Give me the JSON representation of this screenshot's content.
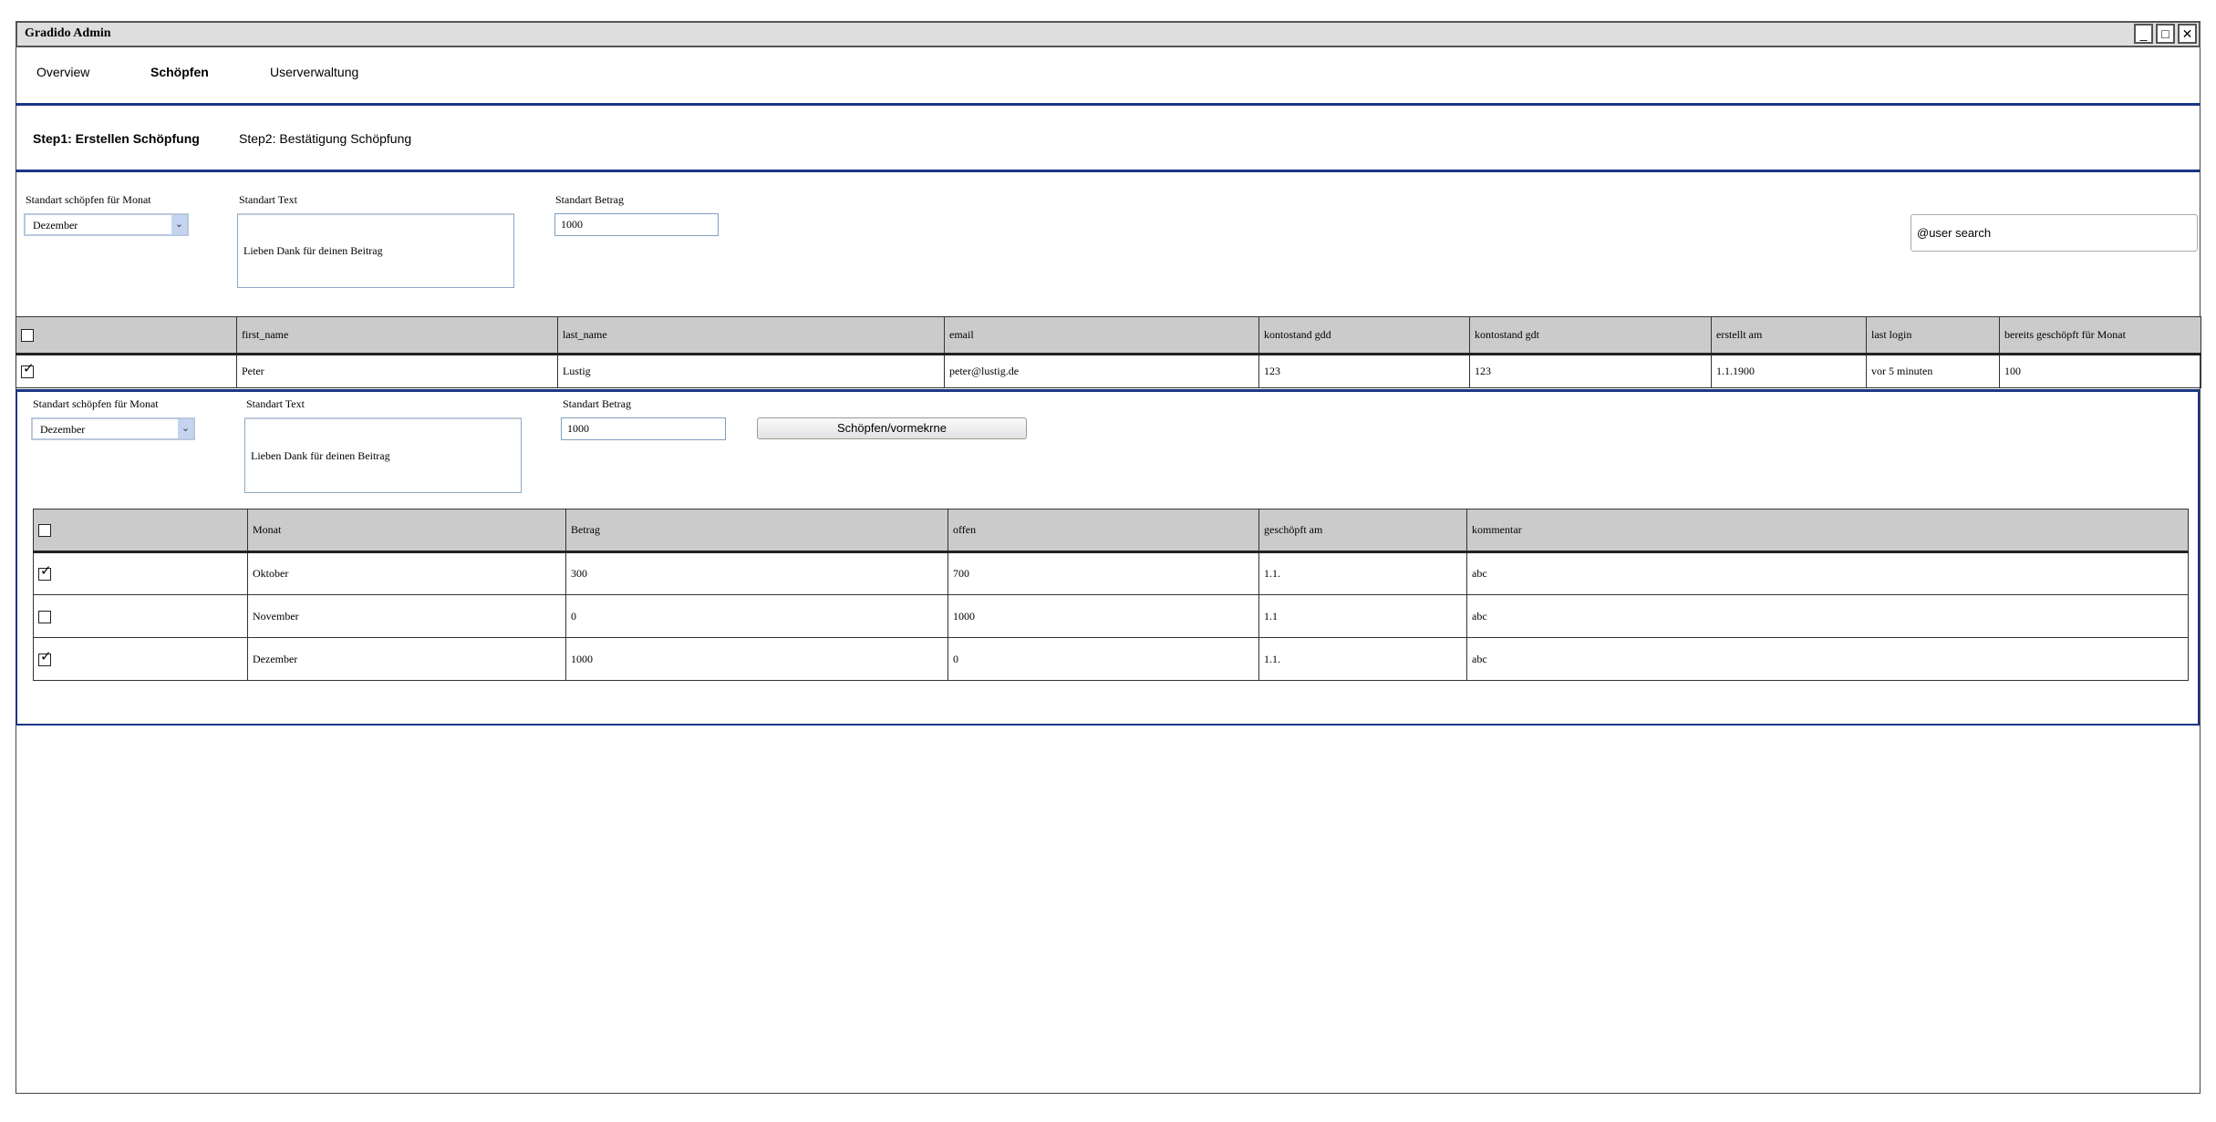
{
  "window": {
    "title": "Gradido Admin",
    "controls": [
      "minimize",
      "maximize",
      "close"
    ]
  },
  "nav": {
    "items": [
      {
        "label": "Overview",
        "active": false
      },
      {
        "label": "Schöpfen",
        "active": true
      },
      {
        "label": "Userverwaltung",
        "active": false
      }
    ]
  },
  "steps": [
    {
      "label": "Step1: Erstellen Schöpfung",
      "active": true
    },
    {
      "label": "Step2: Bestätigung Schöpfung",
      "active": false
    }
  ],
  "defaults": {
    "month_label": "Standart schöpfen für Monat",
    "month_value": "Dezember",
    "text_label": "Standart Text",
    "text_value": "Lieben Dank für deinen Beitrag",
    "amount_label": "Standart Betrag",
    "amount_value": "1000"
  },
  "search": {
    "value": "@user search"
  },
  "users_table": {
    "headers": [
      "",
      "first_name",
      "last_name",
      "email",
      "kontostand gdd",
      "kontostand gdt",
      "erstellt am",
      "last login",
      "bereits geschöpft für Monat"
    ],
    "header_checked": false,
    "rows": [
      {
        "checked": true,
        "cells": [
          "Peter",
          "Lustig",
          "peter@lustig.de",
          "123",
          "123",
          "1.1.1900",
          "vor 5 minuten",
          "100"
        ]
      }
    ]
  },
  "detail": {
    "month_label": "Standart schöpfen für Monat",
    "month_value": "Dezember",
    "text_label": "Standart Text",
    "text_value": "Lieben Dank für deinen Beitrag",
    "amount_label": "Standart Betrag",
    "amount_value": "1000",
    "submit_label": "Schöpfen/vormekrne",
    "table": {
      "headers": [
        "",
        "Monat",
        "Betrag",
        "offen",
        "geschöpft am",
        "kommentar"
      ],
      "header_checked": false,
      "rows": [
        {
          "checked": true,
          "cells": [
            "Oktober",
            "300",
            "700",
            "1.1.",
            "abc"
          ]
        },
        {
          "checked": false,
          "cells": [
            "November",
            "0",
            "1000",
            "1.1",
            "abc"
          ]
        },
        {
          "checked": true,
          "cells": [
            "Dezember",
            "1000",
            "0",
            "1.1.",
            "abc"
          ]
        }
      ]
    }
  },
  "colors": {
    "accent": "#1c3584",
    "header_bg": "#cbcbcb",
    "titlebar_bg": "#dedede"
  }
}
